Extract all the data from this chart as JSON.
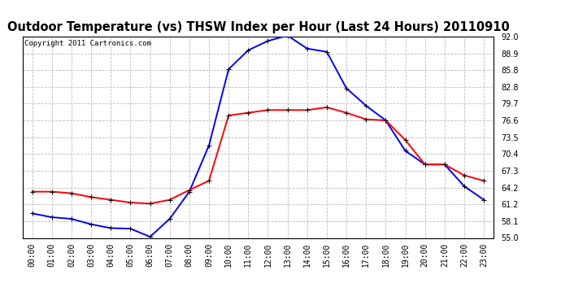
{
  "title": "Outdoor Temperature (vs) THSW Index per Hour (Last 24 Hours) 20110910",
  "copyright": "Copyright 2011 Cartronics.com",
  "hours": [
    "00:00",
    "01:00",
    "02:00",
    "03:00",
    "04:00",
    "05:00",
    "06:00",
    "07:00",
    "08:00",
    "09:00",
    "10:00",
    "11:00",
    "12:00",
    "13:00",
    "14:00",
    "15:00",
    "16:00",
    "17:00",
    "18:00",
    "19:00",
    "20:00",
    "21:00",
    "22:00",
    "23:00"
  ],
  "thsw": [
    59.5,
    58.8,
    58.5,
    57.5,
    56.8,
    56.7,
    55.2,
    58.5,
    63.5,
    72.0,
    86.0,
    89.5,
    91.2,
    92.2,
    89.8,
    89.2,
    82.5,
    79.3,
    76.6,
    71.0,
    68.5,
    68.5,
    64.5,
    62.0
  ],
  "temp": [
    63.5,
    63.5,
    63.2,
    62.5,
    62.0,
    61.5,
    61.3,
    62.0,
    63.8,
    65.5,
    77.5,
    78.0,
    78.5,
    78.5,
    78.5,
    79.0,
    78.0,
    76.8,
    76.6,
    73.0,
    68.5,
    68.5,
    66.5,
    65.5
  ],
  "thsw_color": "#0000ff",
  "temp_color": "#ff0000",
  "bg_color": "#ffffff",
  "grid_color": "#bbbbbb",
  "ylim_low": 55.0,
  "ylim_high": 92.0,
  "yticks": [
    55.0,
    58.1,
    61.2,
    64.2,
    67.3,
    70.4,
    73.5,
    76.6,
    79.7,
    82.8,
    85.8,
    88.9,
    92.0
  ],
  "title_fontsize": 10.5,
  "copyright_fontsize": 6.5,
  "xtick_fontsize": 7,
  "ytick_fontsize": 7,
  "marker": "+",
  "markersize": 4,
  "linewidth": 1.4
}
